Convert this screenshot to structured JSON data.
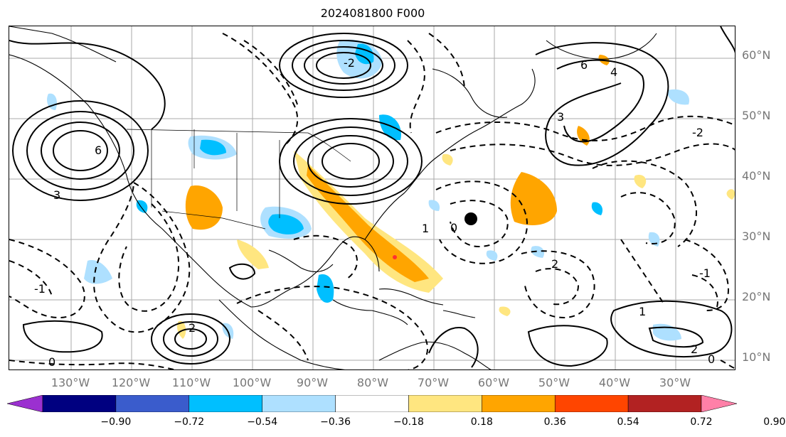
{
  "title": "2024081800 F000",
  "lat_labels": [
    "60°N",
    "50°N",
    "40°N",
    "30°N",
    "20°N",
    "10°N"
  ],
  "lon_labels": [
    "130°W",
    "120°W",
    "110°W",
    "100°W",
    "90°W",
    "80°W",
    "70°W",
    "60°W",
    "50°W",
    "40°W",
    "30°W"
  ],
  "colorbar": {
    "colors": [
      "#9b30d0",
      "#000080",
      "#3a5ccc",
      "#00bfff",
      "#aee0ff",
      "#ffffff",
      "#ffe680",
      "#ffa500",
      "#ff4500",
      "#b22222",
      "#ff80a8"
    ],
    "ticks": [
      "−0.90",
      "−0.72",
      "−0.54",
      "−0.36",
      "−0.18",
      "0.18",
      "0.36",
      "0.54",
      "0.72",
      "0.90"
    ]
  },
  "contour_labels": [
    "6",
    "3",
    "-2",
    "1",
    "0",
    "2",
    "6",
    "4",
    "3",
    "2",
    "0",
    "-1",
    "-2",
    "1",
    "2",
    "0",
    "-1"
  ]
}
